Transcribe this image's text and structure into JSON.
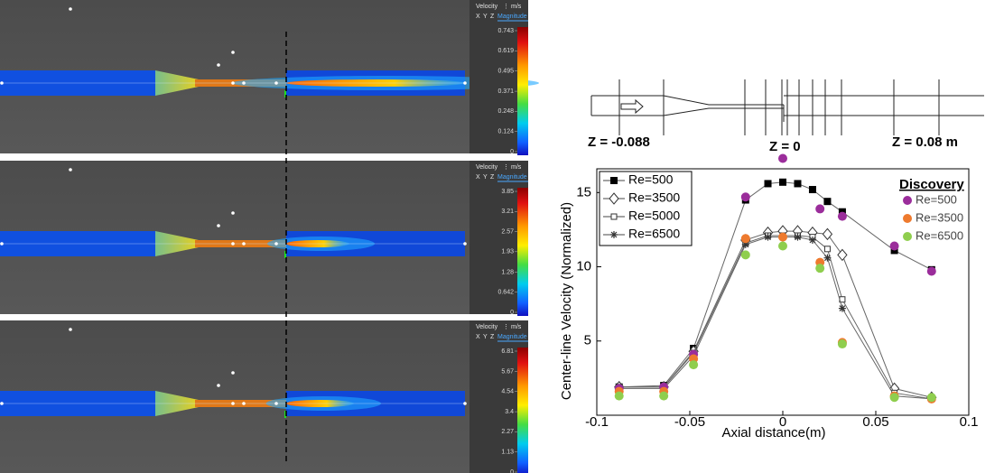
{
  "panels": [
    {
      "header": {
        "quantity": "Velocity",
        "unit": "m/s",
        "components": [
          "X",
          "Y",
          "Z",
          "Magnitude"
        ]
      },
      "colorbar_ticks": [
        0.743,
        0.619,
        0.495,
        0.371,
        0.248,
        0.124,
        0
      ]
    },
    {
      "header": {
        "quantity": "Velocity",
        "unit": "m/s",
        "components": [
          "X",
          "Y",
          "Z",
          "Magnitude"
        ]
      },
      "colorbar_ticks": [
        3.85,
        3.21,
        2.57,
        1.93,
        1.28,
        0.642,
        0
      ]
    },
    {
      "header": {
        "quantity": "Velocity",
        "unit": "m/s",
        "components": [
          "X",
          "Y",
          "Z",
          "Magnitude"
        ]
      },
      "colorbar_ticks": [
        6.81,
        5.67,
        4.54,
        3.4,
        2.27,
        1.13,
        0
      ]
    }
  ],
  "schematic": {
    "labels": [
      "Z = -0.088",
      "Z = 0",
      "Z = 0.08 m"
    ]
  },
  "chart_data": {
    "type": "line",
    "x_label": "Axial distance(m)",
    "y_label": "Center-line Velocity (Normalized)",
    "xlim": [
      -0.1,
      0.1
    ],
    "xticks": [
      -0.1,
      -0.05,
      0,
      0.05,
      0.1
    ],
    "ylim": [
      0,
      16.6
    ],
    "yticks": [
      5,
      10,
      15
    ],
    "series": [
      {
        "name": "Re=500",
        "color": "#000000",
        "marker": "square",
        "x": [
          -0.088,
          -0.064,
          -0.048,
          -0.02,
          -0.008,
          0,
          0.008,
          0.016,
          0.024,
          0.032,
          0.06,
          0.08
        ],
        "values": [
          1.9,
          2.0,
          4.5,
          14.5,
          15.6,
          15.7,
          15.6,
          15.2,
          14.4,
          13.7,
          11.1,
          9.8
        ]
      },
      {
        "name": "Re=3500",
        "color": "#000000",
        "marker": "diamond",
        "x": [
          -0.088,
          -0.064,
          -0.048,
          -0.02,
          -0.008,
          0,
          0.008,
          0.016,
          0.024,
          0.032,
          0.06,
          0.08
        ],
        "values": [
          1.9,
          1.9,
          4.3,
          11.8,
          12.3,
          12.4,
          12.4,
          12.3,
          12.2,
          10.8,
          1.8,
          1.2
        ]
      },
      {
        "name": "Re=5000",
        "color": "#000000",
        "marker": "open-square",
        "x": [
          -0.088,
          -0.064,
          -0.048,
          -0.02,
          -0.008,
          0,
          0.008,
          0.016,
          0.024,
          0.032,
          0.06,
          0.08
        ],
        "values": [
          1.9,
          1.9,
          4.2,
          11.6,
          12.1,
          12.1,
          12.1,
          12.0,
          11.2,
          7.8,
          1.5,
          1.1
        ]
      },
      {
        "name": "Re=6500",
        "color": "#000000",
        "marker": "star",
        "x": [
          -0.088,
          -0.064,
          -0.048,
          -0.02,
          -0.008,
          0,
          0.008,
          0.016,
          0.024,
          0.032,
          0.06,
          0.08
        ],
        "values": [
          1.8,
          1.8,
          4.0,
          11.5,
          12.0,
          12.0,
          12.0,
          11.8,
          10.6,
          7.2,
          1.3,
          1.1
        ]
      }
    ],
    "discovery": {
      "title": "Discovery",
      "series": [
        {
          "name": "Re=500",
          "color": "#9b2d9b",
          "x": [
            -0.088,
            -0.064,
            -0.048,
            -0.02,
            0,
            0.02,
            0.032,
            0.06,
            0.08
          ],
          "values": [
            1.8,
            1.9,
            4.1,
            14.7,
            17.3,
            13.9,
            13.4,
            11.4,
            9.7
          ]
        },
        {
          "name": "Re=3500",
          "color": "#ee7a2e",
          "x": [
            -0.088,
            -0.064,
            -0.048,
            -0.02,
            0,
            0.02,
            0.032,
            0.06,
            0.08
          ],
          "values": [
            1.6,
            1.6,
            3.8,
            11.9,
            12.0,
            10.3,
            4.9,
            1.3,
            1.1
          ]
        },
        {
          "name": "Re=6500",
          "color": "#8fce4e",
          "x": [
            -0.088,
            -0.064,
            -0.048,
            -0.02,
            0,
            0.02,
            0.032,
            0.06,
            0.08
          ],
          "values": [
            1.3,
            1.3,
            3.4,
            10.8,
            11.4,
            9.9,
            4.8,
            1.2,
            1.2
          ]
        }
      ]
    }
  }
}
